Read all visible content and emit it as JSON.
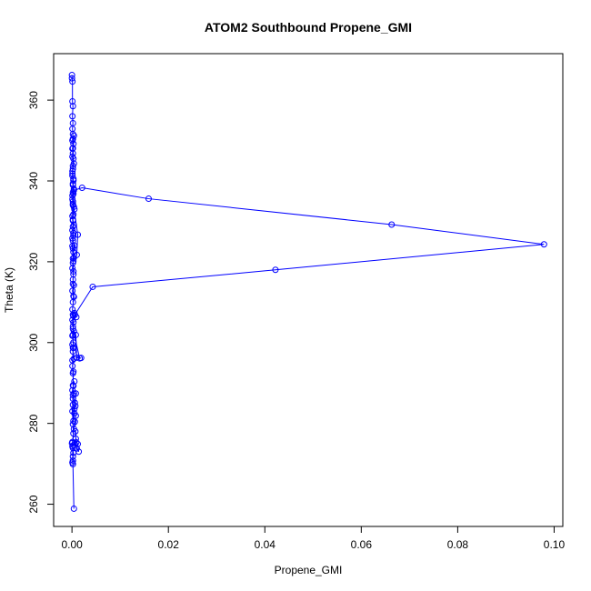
{
  "chart_data": {
    "type": "line",
    "title": "ATOM2 Southbound Propene_GMI",
    "xlabel": "Propene_GMI",
    "ylabel": "Theta (K)",
    "xlim": [
      -0.0038,
      0.1018
    ],
    "ylim": [
      254.5,
      371.5
    ],
    "xticks": [
      0.0,
      0.02,
      0.04,
      0.06,
      0.08,
      0.1
    ],
    "xtick_labels": [
      "0.00",
      "0.02",
      "0.04",
      "0.06",
      "0.08",
      "0.10"
    ],
    "yticks": [
      260,
      280,
      300,
      320,
      340,
      360
    ],
    "ytick_labels": [
      "260",
      "280",
      "300",
      "320",
      "340",
      "360"
    ],
    "grid": false,
    "marker": "open-circle",
    "color": "#0000ff",
    "series": [
      {
        "x": [
          0.0004,
          0.0002,
          0.0002,
          0.0001,
          0.0,
          0.0003,
          0.0008,
          0.0012,
          0.0014,
          0.001,
          0.0009,
          0.0007,
          0.0004,
          0.0006,
          0.0008,
          0.0005,
          0.0006,
          0.0002,
          0.0004,
          0.0008,
          0.0007,
          0.0005,
          0.0003,
          0.0002,
          0.0001,
          0.0005,
          0.0002,
          0.0003,
          0.0001,
          0.0004,
          0.0002,
          0.0001,
          0.0002,
          0.0003,
          0.0001,
          0.0002,
          0.0016,
          0.0019,
          0.001,
          0.0008,
          0.0004,
          0.0002,
          0.0001,
          0.0003,
          0.0002,
          0.0005,
          0.0009,
          0.0006,
          0.0043,
          0.0422,
          0.0979,
          0.0663,
          0.0159,
          0.0021,
          0.0004,
          0.0002,
          0.0012,
          0.001,
          0.0003,
          0.0002,
          0.0001,
          0.0002,
          0.0001,
          0.0002,
          0.0001,
          0.0002,
          0.0001,
          0.0002,
          0.0001,
          0.0002,
          0.0001,
          0.0002,
          0.0001,
          0.0002,
          0.0001,
          0.0002,
          0.0001,
          0.0001,
          0.0,
          0.0
        ],
        "y": [
          258.9,
          269.9,
          270.8,
          274.3,
          275.1,
          274.6,
          276.2,
          274.9,
          273.0,
          273.8,
          275.3,
          278.0,
          278.6,
          280.4,
          281.9,
          283.6,
          285.1,
          287.0,
          287.4,
          287.4,
          284.3,
          282.5,
          280.6,
          284.6,
          288.2,
          290.4,
          289.4,
          292.8,
          294.2,
          296.0,
          297.8,
          299.5,
          298.7,
          300.0,
          301.7,
          303.4,
          296.1,
          296.2,
          296.3,
          301.9,
          302.8,
          304.0,
          305.6,
          306.6,
          306.9,
          307.3,
          306.3,
          306.9,
          313.8,
          318.0,
          324.3,
          329.2,
          335.6,
          338.3,
          337.7,
          334.9,
          326.7,
          321.7,
          320.2,
          323.3,
          325.8,
          328.7,
          331.3,
          334.0,
          336.4,
          339.0,
          341.3,
          343.7,
          346.0,
          348.1,
          350.0,
          351.6,
          352.9,
          354.3,
          356.0,
          358.5,
          359.7,
          364.6,
          365.4,
          366.2
        ]
      },
      {
        "x": [
          0.0002,
          0.0003,
          0.0001,
          0.0004,
          0.0002,
          0.0003,
          0.0001,
          0.0002,
          0.0004,
          0.0003,
          0.0005,
          0.0002,
          0.0003,
          0.0001,
          0.0004,
          0.0002,
          0.0003,
          0.0005,
          0.0002,
          0.0001,
          0.0003,
          0.0004,
          0.0002,
          0.0003,
          0.0001,
          0.0002,
          0.0004,
          0.0003,
          0.0002,
          0.0001,
          0.0003,
          0.0002,
          0.0004,
          0.0001,
          0.0003,
          0.0002,
          0.0004,
          0.0002,
          0.0003,
          0.0001,
          0.0002,
          0.0003,
          0.0002,
          0.0004,
          0.0001,
          0.0003,
          0.0002,
          0.0003,
          0.0001,
          0.0002,
          0.0003,
          0.0002,
          0.0001,
          0.0002,
          0.0003,
          0.0001,
          0.0002,
          0.0003,
          0.0002,
          0.0001
        ],
        "y": [
          310.0,
          311.5,
          312.8,
          314.2,
          315.6,
          316.9,
          318.4,
          319.7,
          321.0,
          322.4,
          324.0,
          325.2,
          326.5,
          327.8,
          329.1,
          330.4,
          331.7,
          333.0,
          334.3,
          335.5,
          336.8,
          338.0,
          339.3,
          340.5,
          341.8,
          343.0,
          344.3,
          345.5,
          346.8,
          348.0,
          349.2,
          350.4,
          351.2,
          342.4,
          340.1,
          337.2,
          333.6,
          330.2,
          327.1,
          323.9,
          320.8,
          317.6,
          314.5,
          311.3,
          308.2,
          305.0,
          301.9,
          298.7,
          295.6,
          292.4,
          289.3,
          286.1,
          283.0,
          279.8,
          277.5,
          275.4,
          273.9,
          272.7,
          271.8,
          270.3
        ]
      }
    ]
  }
}
